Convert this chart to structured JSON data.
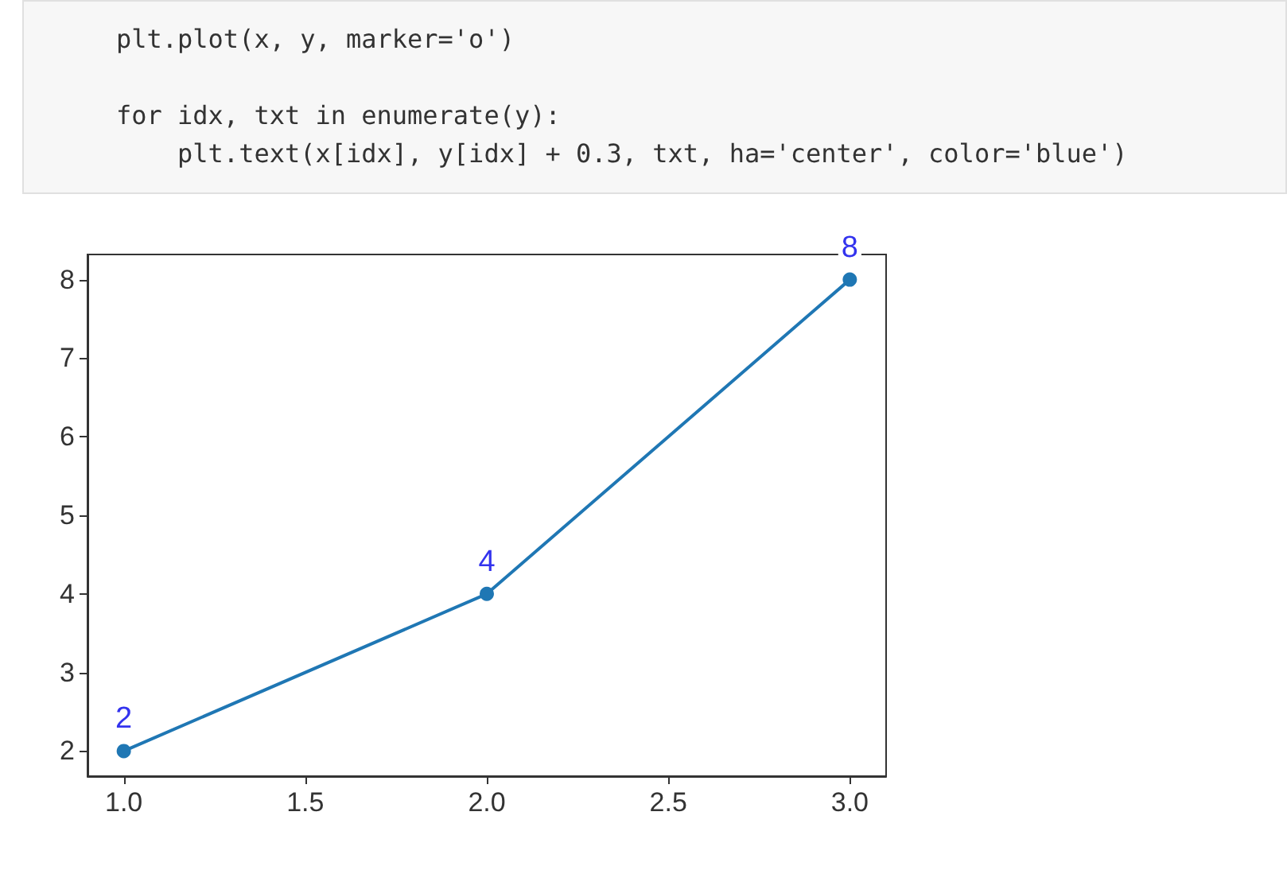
{
  "chart_data": {
    "type": "line",
    "x": [
      1,
      2,
      3
    ],
    "series": [
      {
        "color": "#1f77b4",
        "values": [
          2,
          4,
          8
        ]
      }
    ],
    "xlim": [
      0.9,
      3.1
    ],
    "xticks": [
      {
        "value": 1,
        "label": "1.0"
      },
      {
        "value": 1.5,
        "label": "1.5"
      },
      {
        "value": 2,
        "label": "2.0"
      },
      {
        "value": 2.5,
        "label": "2.5"
      },
      {
        "value": 3,
        "label": "3.0"
      }
    ],
    "ylim": [
      1.68,
      8.32
    ],
    "yticks": [
      2,
      3,
      4,
      5,
      6,
      7,
      8
    ],
    "marker": "circle",
    "grid": false,
    "data_labels": true,
    "annotations": [
      "plt.plot(x, y, marker='o')",
      "for idx, txt in enumerate(y):",
      "    plt.text(x[idx], y[idx] + 0.3, txt, ha='center', color='blue')"
    ]
  }
}
